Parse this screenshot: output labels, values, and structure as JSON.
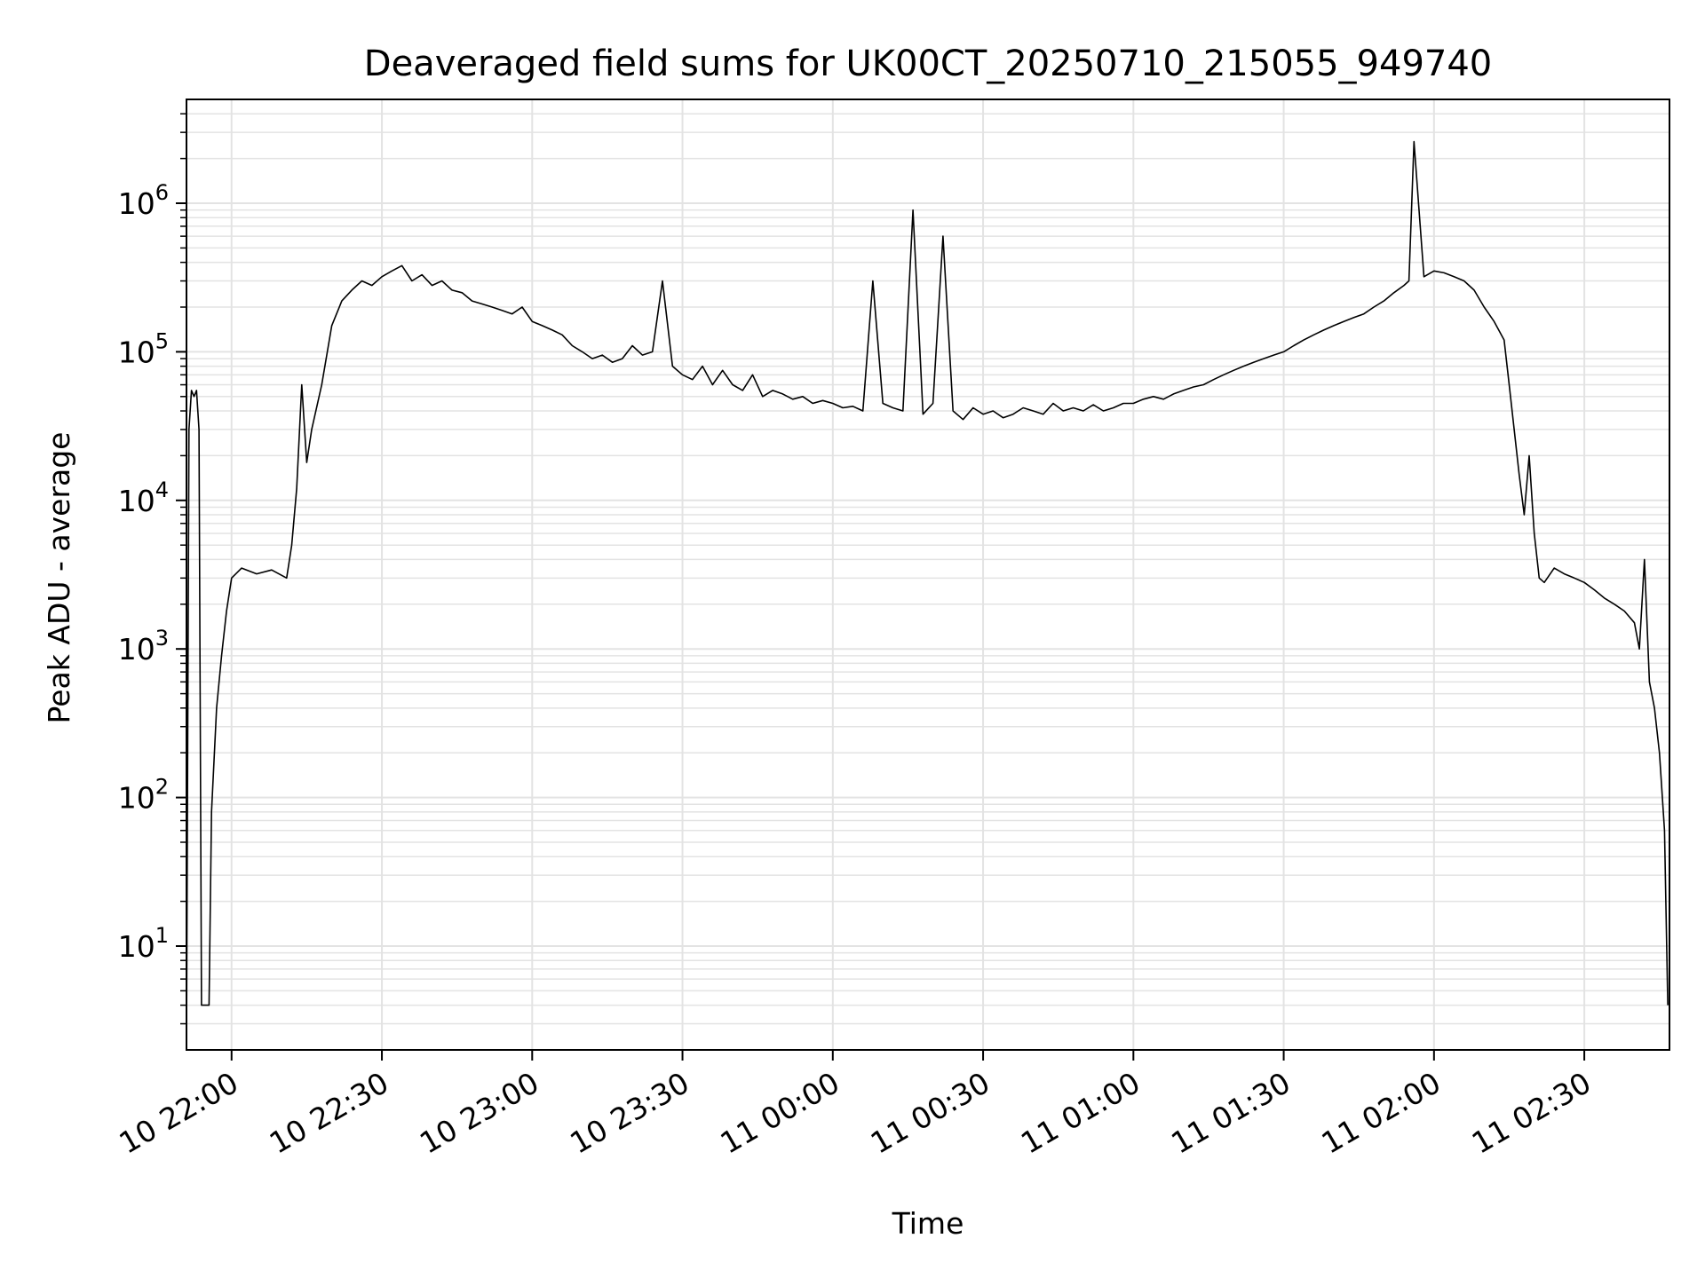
{
  "chart_data": {
    "type": "line",
    "title": "Deaveraged field sums for UK00CT_20250710_215055_949740",
    "xlabel": "Time",
    "ylabel": "Peak ADU - average",
    "y_scale": "log",
    "ylim": [
      2,
      5000000
    ],
    "xlim": [
      "2025-07-10 21:51:00",
      "2025-07-11 02:47:00"
    ],
    "grid": true,
    "line_color": "#000000",
    "x_ticks": [
      {
        "t": "2025-07-10 22:00",
        "label": "10 22:00"
      },
      {
        "t": "2025-07-10 22:30",
        "label": "10 22:30"
      },
      {
        "t": "2025-07-10 23:00",
        "label": "10 23:00"
      },
      {
        "t": "2025-07-10 23:30",
        "label": "10 23:30"
      },
      {
        "t": "2025-07-11 00:00",
        "label": "11 00:00"
      },
      {
        "t": "2025-07-11 00:30",
        "label": "11 00:30"
      },
      {
        "t": "2025-07-11 01:00",
        "label": "11 01:00"
      },
      {
        "t": "2025-07-11 01:30",
        "label": "11 01:30"
      },
      {
        "t": "2025-07-11 02:00",
        "label": "11 02:00"
      },
      {
        "t": "2025-07-11 02:30",
        "label": "11 02:30"
      }
    ],
    "y_ticks": [
      {
        "value": 10,
        "base": "10",
        "exp": "1"
      },
      {
        "value": 100,
        "base": "10",
        "exp": "2"
      },
      {
        "value": 1000,
        "base": "10",
        "exp": "3"
      },
      {
        "value": 10000,
        "base": "10",
        "exp": "4"
      },
      {
        "value": 100000,
        "base": "10",
        "exp": "5"
      },
      {
        "value": 1000000,
        "base": "10",
        "exp": "6"
      }
    ],
    "series": [
      {
        "x": [
          "2025-07-10 21:51:00",
          "2025-07-10 21:51:30",
          "2025-07-10 21:52:00",
          "2025-07-10 21:52:30",
          "2025-07-10 21:53:00",
          "2025-07-10 21:53:30",
          "2025-07-10 21:54:00",
          "2025-07-10 21:54:30",
          "2025-07-10 21:55:00",
          "2025-07-10 21:55:30",
          "2025-07-10 21:56:00",
          "2025-07-10 21:57:00",
          "2025-07-10 21:58:00",
          "2025-07-10 21:59:00",
          "2025-07-10 22:00:00",
          "2025-07-10 22:02:00",
          "2025-07-10 22:05:00",
          "2025-07-10 22:08:00",
          "2025-07-10 22:11:00",
          "2025-07-10 22:12:00",
          "2025-07-10 22:13:00",
          "2025-07-10 22:14:00",
          "2025-07-10 22:15:00",
          "2025-07-10 22:16:00",
          "2025-07-10 22:18:00",
          "2025-07-10 22:20:00",
          "2025-07-10 22:22:00",
          "2025-07-10 22:24:00",
          "2025-07-10 22:26:00",
          "2025-07-10 22:28:00",
          "2025-07-10 22:30:00",
          "2025-07-10 22:32:00",
          "2025-07-10 22:34:00",
          "2025-07-10 22:36:00",
          "2025-07-10 22:38:00",
          "2025-07-10 22:40:00",
          "2025-07-10 22:42:00",
          "2025-07-10 22:44:00",
          "2025-07-10 22:46:00",
          "2025-07-10 22:48:00",
          "2025-07-10 22:50:00",
          "2025-07-10 22:52:00",
          "2025-07-10 22:54:00",
          "2025-07-10 22:56:00",
          "2025-07-10 22:58:00",
          "2025-07-10 23:00:00",
          "2025-07-10 23:02:00",
          "2025-07-10 23:04:00",
          "2025-07-10 23:06:00",
          "2025-07-10 23:08:00",
          "2025-07-10 23:10:00",
          "2025-07-10 23:12:00",
          "2025-07-10 23:14:00",
          "2025-07-10 23:16:00",
          "2025-07-10 23:18:00",
          "2025-07-10 23:20:00",
          "2025-07-10 23:22:00",
          "2025-07-10 23:24:00",
          "2025-07-10 23:26:00",
          "2025-07-10 23:28:00",
          "2025-07-10 23:30:00",
          "2025-07-10 23:32:00",
          "2025-07-10 23:34:00",
          "2025-07-10 23:36:00",
          "2025-07-10 23:38:00",
          "2025-07-10 23:40:00",
          "2025-07-10 23:42:00",
          "2025-07-10 23:44:00",
          "2025-07-10 23:46:00",
          "2025-07-10 23:48:00",
          "2025-07-10 23:50:00",
          "2025-07-10 23:52:00",
          "2025-07-10 23:54:00",
          "2025-07-10 23:56:00",
          "2025-07-10 23:58:00",
          "2025-07-11 00:00:00",
          "2025-07-11 00:02:00",
          "2025-07-11 00:04:00",
          "2025-07-11 00:06:00",
          "2025-07-11 00:08:00",
          "2025-07-11 00:10:00",
          "2025-07-11 00:12:00",
          "2025-07-11 00:14:00",
          "2025-07-11 00:16:00",
          "2025-07-11 00:18:00",
          "2025-07-11 00:20:00",
          "2025-07-11 00:22:00",
          "2025-07-11 00:24:00",
          "2025-07-11 00:26:00",
          "2025-07-11 00:28:00",
          "2025-07-11 00:30:00",
          "2025-07-11 00:32:00",
          "2025-07-11 00:34:00",
          "2025-07-11 00:36:00",
          "2025-07-11 00:38:00",
          "2025-07-11 00:40:00",
          "2025-07-11 00:42:00",
          "2025-07-11 00:44:00",
          "2025-07-11 00:46:00",
          "2025-07-11 00:48:00",
          "2025-07-11 00:50:00",
          "2025-07-11 00:52:00",
          "2025-07-11 00:54:00",
          "2025-07-11 00:56:00",
          "2025-07-11 00:58:00",
          "2025-07-11 01:00:00",
          "2025-07-11 01:02:00",
          "2025-07-11 01:04:00",
          "2025-07-11 01:06:00",
          "2025-07-11 01:08:00",
          "2025-07-11 01:10:00",
          "2025-07-11 01:12:00",
          "2025-07-11 01:14:00",
          "2025-07-11 01:16:00",
          "2025-07-11 01:18:00",
          "2025-07-11 01:20:00",
          "2025-07-11 01:22:00",
          "2025-07-11 01:24:00",
          "2025-07-11 01:26:00",
          "2025-07-11 01:28:00",
          "2025-07-11 01:30:00",
          "2025-07-11 01:32:00",
          "2025-07-11 01:34:00",
          "2025-07-11 01:36:00",
          "2025-07-11 01:38:00",
          "2025-07-11 01:40:00",
          "2025-07-11 01:42:00",
          "2025-07-11 01:44:00",
          "2025-07-11 01:46:00",
          "2025-07-11 01:48:00",
          "2025-07-11 01:50:00",
          "2025-07-11 01:52:00",
          "2025-07-11 01:54:00",
          "2025-07-11 01:55:00",
          "2025-07-11 01:56:00",
          "2025-07-11 01:58:00",
          "2025-07-11 02:00:00",
          "2025-07-11 02:02:00",
          "2025-07-11 02:04:00",
          "2025-07-11 02:06:00",
          "2025-07-11 02:08:00",
          "2025-07-11 02:10:00",
          "2025-07-11 02:12:00",
          "2025-07-11 02:14:00",
          "2025-07-11 02:15:00",
          "2025-07-11 02:16:00",
          "2025-07-11 02:17:00",
          "2025-07-11 02:18:00",
          "2025-07-11 02:19:00",
          "2025-07-11 02:20:00",
          "2025-07-11 02:21:00",
          "2025-07-11 02:22:00",
          "2025-07-11 02:24:00",
          "2025-07-11 02:26:00",
          "2025-07-11 02:28:00",
          "2025-07-11 02:30:00",
          "2025-07-11 02:32:00",
          "2025-07-11 02:34:00",
          "2025-07-11 02:36:00",
          "2025-07-11 02:38:00",
          "2025-07-11 02:40:00",
          "2025-07-11 02:41:00",
          "2025-07-11 02:42:00",
          "2025-07-11 02:43:00",
          "2025-07-11 02:44:00",
          "2025-07-11 02:45:00",
          "2025-07-11 02:46:00",
          "2025-07-11 02:46:40"
        ],
        "y": [
          2,
          30000,
          55000,
          50000,
          55000,
          30000,
          4,
          4,
          4,
          4,
          80,
          400,
          900,
          1800,
          3000,
          3500,
          3200,
          3400,
          3000,
          5000,
          12000,
          60000,
          18000,
          30000,
          60000,
          150000,
          220000,
          260000,
          300000,
          280000,
          320000,
          350000,
          380000,
          300000,
          330000,
          280000,
          300000,
          260000,
          250000,
          220000,
          210000,
          200000,
          190000,
          180000,
          200000,
          160000,
          150000,
          140000,
          130000,
          110000,
          100000,
          90000,
          95000,
          85000,
          90000,
          110000,
          95000,
          100000,
          300000,
          80000,
          70000,
          65000,
          80000,
          60000,
          75000,
          60000,
          55000,
          70000,
          50000,
          55000,
          52000,
          48000,
          50000,
          45000,
          47000,
          45000,
          42000,
          43000,
          40000,
          300000,
          45000,
          42000,
          40000,
          900000,
          38000,
          45000,
          600000,
          40000,
          35000,
          42000,
          38000,
          40000,
          36000,
          38000,
          42000,
          40000,
          38000,
          45000,
          40000,
          42000,
          40000,
          44000,
          40000,
          42000,
          45000,
          45000,
          48000,
          50000,
          48000,
          52000,
          55000,
          58000,
          60000,
          65000,
          70000,
          75000,
          80000,
          85000,
          90000,
          95000,
          100000,
          110000,
          120000,
          130000,
          140000,
          150000,
          160000,
          170000,
          180000,
          200000,
          220000,
          250000,
          280000,
          300000,
          2600000,
          320000,
          350000,
          340000,
          320000,
          300000,
          260000,
          200000,
          160000,
          120000,
          60000,
          30000,
          15000,
          8000,
          20000,
          6000,
          3000,
          2800,
          3500,
          3200,
          3000,
          2800,
          2500,
          2200,
          2000,
          1800,
          1500,
          1000,
          4000,
          600,
          400,
          200,
          60,
          4
        ]
      }
    ]
  }
}
